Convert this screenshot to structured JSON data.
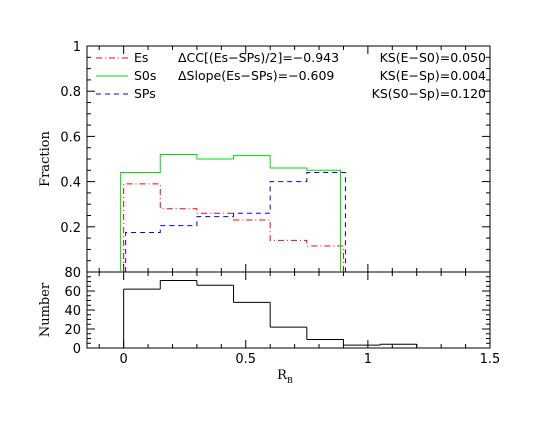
{
  "chart_data": [
    {
      "type": "line",
      "ylabel": "Fraction",
      "xlim": [
        -0.15,
        1.5
      ],
      "ylim": [
        0,
        1
      ],
      "x_ticks": [
        "0",
        "0.5",
        "1",
        "1.5"
      ],
      "y_ticks": [
        "0.2",
        "0.4",
        "0.6",
        "0.8",
        "1"
      ],
      "bin_edges": [
        0,
        0.15,
        0.3,
        0.45,
        0.6,
        0.75,
        0.9
      ],
      "series": [
        {
          "name": "Es",
          "color": "#ff0000",
          "style": "dash-dot",
          "values": [
            0.39,
            0.28,
            0.26,
            0.23,
            0.14,
            0.115
          ]
        },
        {
          "name": "S0s",
          "color": "#00dd00",
          "style": "solid",
          "values": [
            0.44,
            0.52,
            0.5,
            0.515,
            0.46,
            0.45
          ]
        },
        {
          "name": "SPs",
          "color": "#0000ff",
          "style": "dashed",
          "values": [
            0.175,
            0.205,
            0.245,
            0.26,
            0.4,
            0.44
          ]
        }
      ],
      "annotations": [
        "ΔCC[(Es−SPs)/2]=−0.943",
        "ΔSlope(Es−SPs)=−0.609",
        "KS(E−S0)=0.050",
        "KS(E−Sp)=0.004",
        "KS(S0−Sp)=0.120"
      ]
    },
    {
      "type": "bar",
      "xlabel": "R",
      "xlabel_sub": "B",
      "ylabel": "Number",
      "xlim": [
        -0.15,
        1.5
      ],
      "ylim": [
        0,
        80
      ],
      "x_ticks": [
        "0",
        "0.5",
        "1",
        "1.5"
      ],
      "y_ticks": [
        "0",
        "20",
        "40",
        "60",
        "80"
      ],
      "bin_edges": [
        0,
        0.15,
        0.3,
        0.45,
        0.6,
        0.75,
        0.9,
        1.05,
        1.2
      ],
      "values": [
        62,
        71,
        66,
        48,
        22,
        9,
        3,
        4
      ],
      "color": "#000000"
    }
  ]
}
